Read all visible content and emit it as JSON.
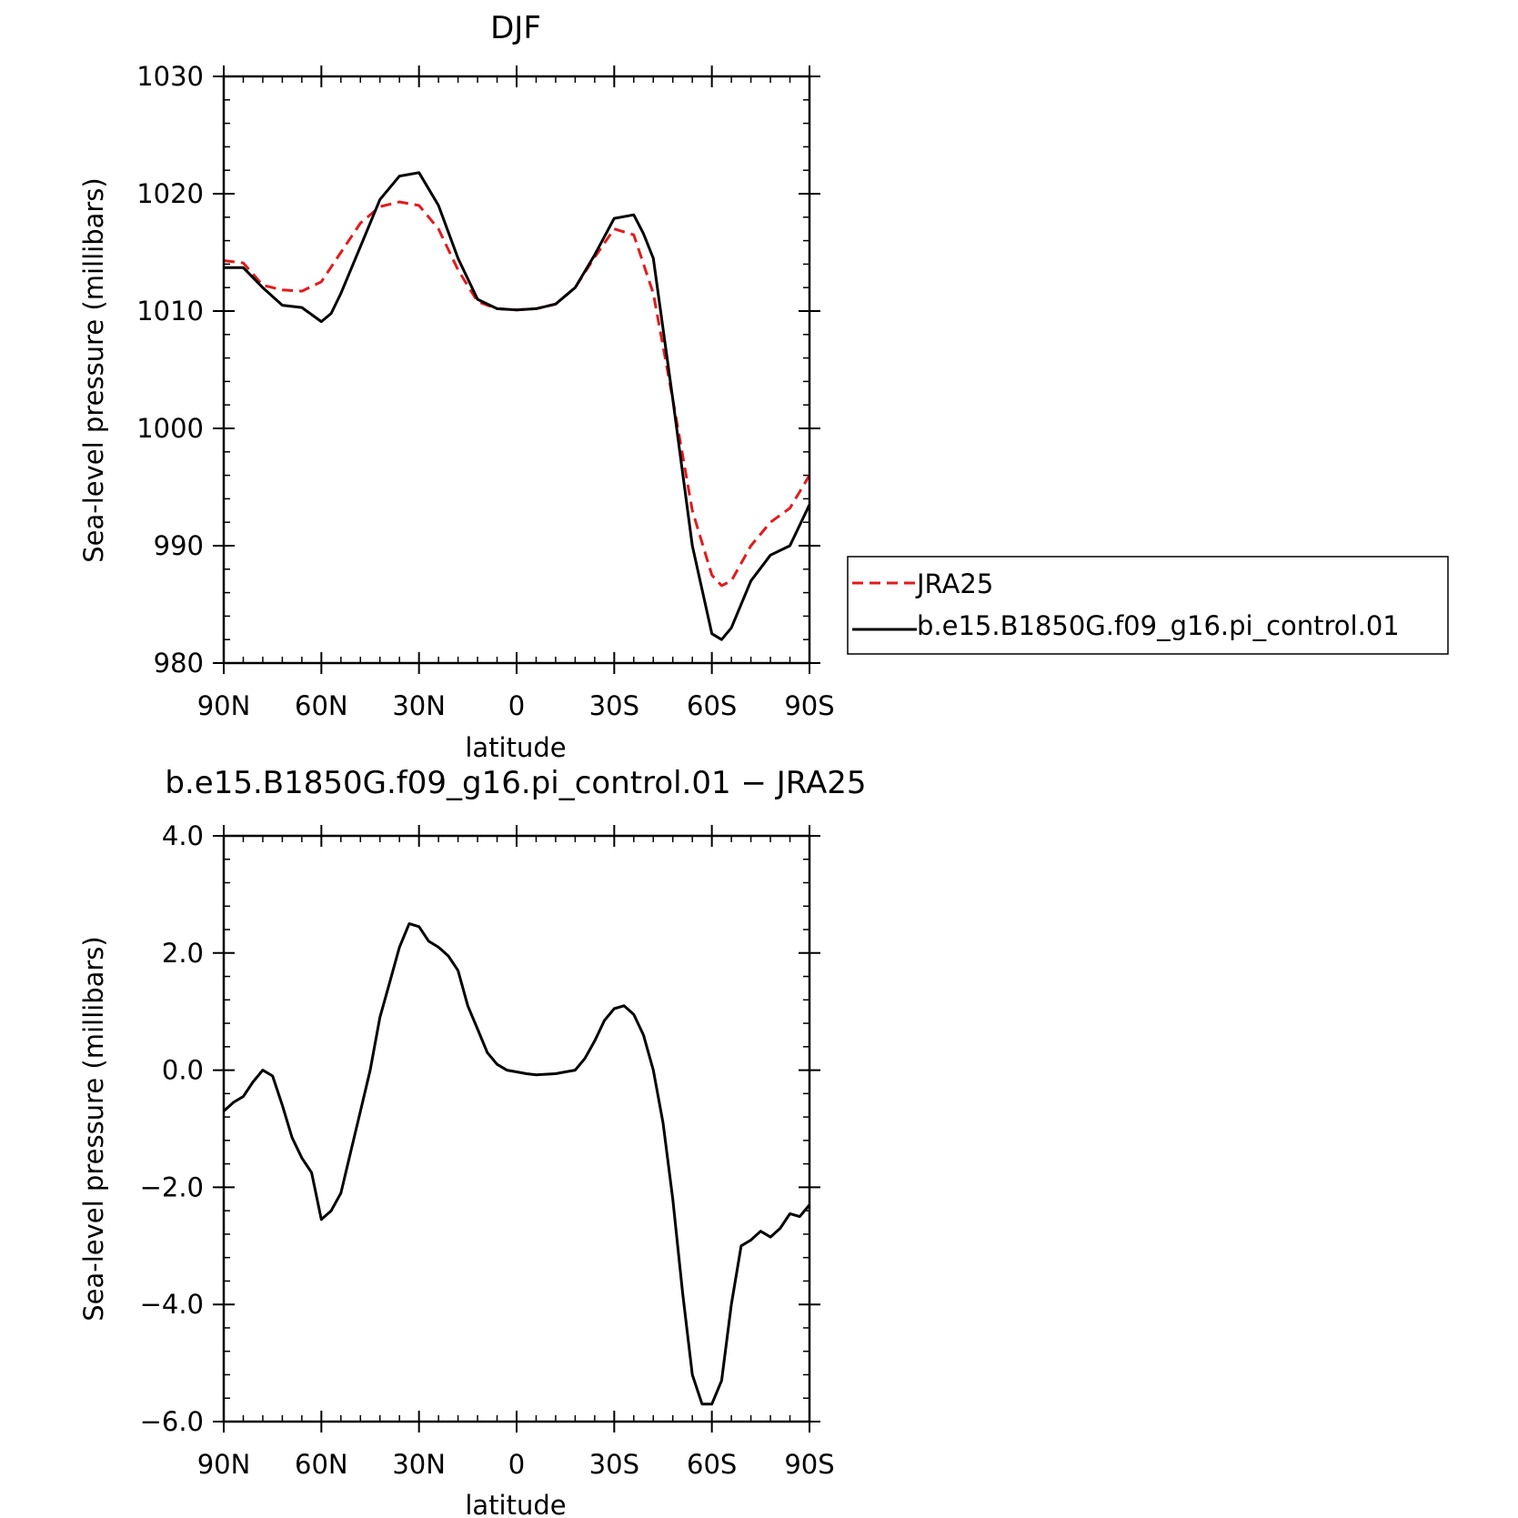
{
  "chart_data": [
    {
      "type": "line",
      "title": "DJF",
      "xlabel": "latitude",
      "ylabel": "Sea-level pressure (millibars)",
      "xlim": [
        90,
        -90
      ],
      "ylim": [
        980,
        1030
      ],
      "x_ticks": [
        90,
        60,
        30,
        0,
        -30,
        -60,
        -90
      ],
      "x_tick_labels": [
        "90N",
        "60N",
        "30N",
        "0",
        "30S",
        "60S",
        "90S"
      ],
      "y_ticks": [
        980,
        990,
        1000,
        1010,
        1020,
        1030
      ],
      "y_tick_labels": [
        "980",
        "990",
        "1000",
        "1010",
        "1020",
        "1030"
      ],
      "legend_position": "right",
      "series": [
        {
          "name": "JRA25",
          "color": "#e41a1c",
          "dash": "dashed",
          "x": [
            90,
            84,
            78,
            72,
            66,
            60,
            54,
            48,
            42,
            36,
            30,
            24,
            18,
            12,
            6,
            0,
            -6,
            -12,
            -18,
            -24,
            -30,
            -36,
            -42,
            -48,
            -54,
            -60,
            -63,
            -66,
            -72,
            -78,
            -84,
            -90
          ],
          "y": [
            1014.3,
            1014.1,
            1012.2,
            1011.8,
            1011.7,
            1012.5,
            1015.0,
            1017.5,
            1018.9,
            1019.3,
            1019.0,
            1017.0,
            1013.5,
            1010.8,
            1010.2,
            1010.1,
            1010.2,
            1010.6,
            1012.0,
            1014.6,
            1017.0,
            1016.5,
            1011.5,
            1002.5,
            993.0,
            987.5,
            986.6,
            987.0,
            990.0,
            992.0,
            993.2,
            996.0
          ]
        },
        {
          "name": "b.e15.B1850G.f09_g16.pi_control.01",
          "color": "#000000",
          "dash": "solid",
          "x": [
            90,
            84,
            78,
            72,
            66,
            60,
            57,
            54,
            48,
            42,
            36,
            30,
            24,
            18,
            12,
            6,
            0,
            -6,
            -12,
            -18,
            -24,
            -30,
            -36,
            -39,
            -42,
            -48,
            -54,
            -60,
            -63,
            -66,
            -72,
            -78,
            -84,
            -90
          ],
          "y": [
            1013.7,
            1013.7,
            1012.0,
            1010.5,
            1010.3,
            1009.1,
            1009.8,
            1011.5,
            1015.5,
            1019.5,
            1021.5,
            1021.8,
            1019.0,
            1014.5,
            1011.0,
            1010.2,
            1010.1,
            1010.2,
            1010.6,
            1012.0,
            1014.8,
            1017.9,
            1018.2,
            1016.6,
            1014.5,
            1002.5,
            990.0,
            982.5,
            982.0,
            983.0,
            987.0,
            989.2,
            990.0,
            993.5
          ]
        }
      ]
    },
    {
      "type": "line",
      "title": "b.e15.B1850G.f09_g16.pi_control.01 − JRA25",
      "xlabel": "latitude",
      "ylabel": "Sea-level pressure (millibars)",
      "xlim": [
        90,
        -90
      ],
      "ylim": [
        -6,
        4
      ],
      "x_ticks": [
        90,
        60,
        30,
        0,
        -30,
        -60,
        -90
      ],
      "x_tick_labels": [
        "90N",
        "60N",
        "30N",
        "0",
        "30S",
        "60S",
        "90S"
      ],
      "y_ticks": [
        -6,
        -4,
        -2,
        0,
        2,
        4
      ],
      "y_tick_labels": [
        "−6.0",
        "−4.0",
        "−2.0",
        "0.0",
        "2.0",
        "4.0"
      ],
      "series": [
        {
          "color": "#000000",
          "dash": "solid",
          "x": [
            90,
            87,
            84,
            81,
            78,
            75,
            72,
            69,
            66,
            63,
            60,
            57,
            54,
            51,
            48,
            45,
            42,
            39,
            36,
            33,
            30,
            27,
            24,
            21,
            18,
            15,
            12,
            9,
            6,
            3,
            0,
            -3,
            -6,
            -9,
            -12,
            -15,
            -18,
            -21,
            -24,
            -27,
            -30,
            -33,
            -36,
            -39,
            -42,
            -45,
            -48,
            -51,
            -54,
            -57,
            -60,
            -63,
            -66,
            -69,
            -72,
            -75,
            -78,
            -81,
            -84,
            -87,
            -90
          ],
          "y": [
            -0.7,
            -0.55,
            -0.45,
            -0.2,
            0.0,
            -0.1,
            -0.6,
            -1.15,
            -1.5,
            -1.75,
            -2.55,
            -2.4,
            -2.1,
            -1.4,
            -0.7,
            0.0,
            0.9,
            1.5,
            2.1,
            2.5,
            2.45,
            2.2,
            2.1,
            1.95,
            1.7,
            1.1,
            0.7,
            0.3,
            0.1,
            0.0,
            -0.03,
            -0.06,
            -0.08,
            -0.07,
            -0.06,
            -0.03,
            0.0,
            0.2,
            0.5,
            0.85,
            1.05,
            1.1,
            0.95,
            0.6,
            0.0,
            -0.9,
            -2.2,
            -3.8,
            -5.2,
            -5.7,
            -5.7,
            -5.3,
            -4.0,
            -3.0,
            -2.9,
            -2.75,
            -2.85,
            -2.7,
            -2.45,
            -2.5,
            -2.3
          ]
        }
      ]
    }
  ]
}
